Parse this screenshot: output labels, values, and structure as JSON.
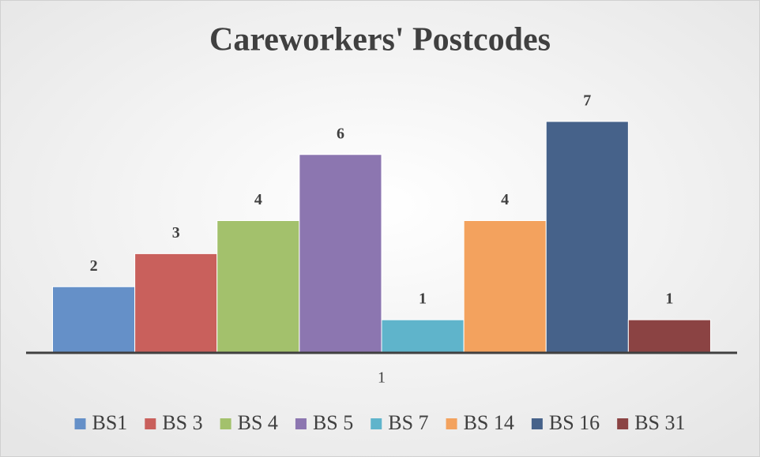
{
  "chart_data": {
    "type": "bar",
    "title": "Careworkers' Postcodes",
    "categories": [
      "1"
    ],
    "series": [
      {
        "name": "BS1",
        "color": "#6590c8",
        "values": [
          2
        ]
      },
      {
        "name": "BS 3",
        "color": "#c9605c",
        "values": [
          3
        ]
      },
      {
        "name": "BS 4",
        "color": "#a3c16c",
        "values": [
          4
        ]
      },
      {
        "name": "BS 5",
        "color": "#8c76b0",
        "values": [
          6
        ]
      },
      {
        "name": "BS 7",
        "color": "#5fb4cb",
        "values": [
          1
        ]
      },
      {
        "name": "BS 14",
        "color": "#f3a25e",
        "values": [
          4
        ]
      },
      {
        "name": "BS 16",
        "color": "#46628a",
        "values": [
          7
        ]
      },
      {
        "name": "BS 31",
        "color": "#8b4343",
        "values": [
          1
        ]
      }
    ],
    "ylim": [
      0,
      8
    ],
    "legend": "bottom"
  }
}
